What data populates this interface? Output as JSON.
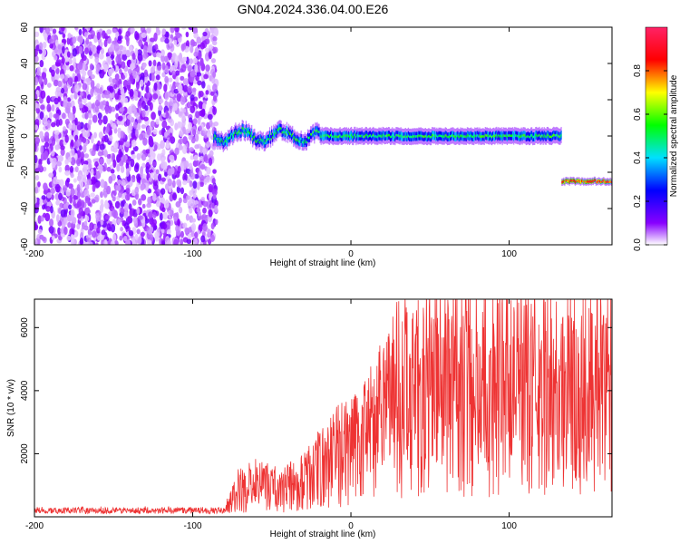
{
  "title": "GN04.2024.336.04.00.E26",
  "chart_data": [
    {
      "type": "heatmap",
      "xlabel": "Height of straight line (km)",
      "ylabel": "Frequency (Hz)",
      "xlim": [
        -200,
        165
      ],
      "ylim": [
        -60,
        60
      ],
      "xticks": [
        "-200",
        "-100",
        "0",
        "100"
      ],
      "yticks": [
        "60",
        "40",
        "20",
        "0",
        "-20",
        "-40",
        "-60"
      ],
      "colorbar": {
        "label": "Normalized spectral amplitude",
        "range": [
          0,
          1
        ],
        "ticks": [
          "0.0",
          "0.2",
          "0.4",
          "0.6",
          "0.8"
        ],
        "colors": [
          "#ffffff",
          "#8800ff",
          "#0000ff",
          "#00e0ff",
          "#00ff00",
          "#ffff00",
          "#ff0000",
          "#ff2266"
        ]
      },
      "features": [
        {
          "kind": "noise",
          "x_range": [
            -200,
            -85
          ],
          "freq_range": [
            -60,
            60
          ],
          "amplitude": 0.15
        },
        {
          "kind": "line",
          "x_range": [
            -87,
            133
          ],
          "freq": 0,
          "amplitude": 0.6
        },
        {
          "kind": "line",
          "x_range": [
            133,
            165
          ],
          "freq": -25,
          "amplitude": 0.95
        }
      ]
    },
    {
      "type": "line",
      "xlabel": "Height of straight line (km)",
      "ylabel": "SNR (10 * v/v)",
      "xlim": [
        -200,
        165
      ],
      "ylim": [
        0,
        6900
      ],
      "xticks": [
        "-200",
        "-100",
        "0",
        "100"
      ],
      "yticks": [
        "2000",
        "4000",
        "6000"
      ],
      "series_color": "#ee3333",
      "envelope": [
        {
          "x": -200,
          "y": 200
        },
        {
          "x": -80,
          "y": 200
        },
        {
          "x": -73,
          "y": 800
        },
        {
          "x": -60,
          "y": 1000
        },
        {
          "x": -45,
          "y": 900
        },
        {
          "x": -30,
          "y": 1100
        },
        {
          "x": -15,
          "y": 1700
        },
        {
          "x": 0,
          "y": 2200
        },
        {
          "x": 15,
          "y": 2700
        },
        {
          "x": 30,
          "y": 3800
        },
        {
          "x": 60,
          "y": 4100
        },
        {
          "x": 100,
          "y": 4100
        },
        {
          "x": 130,
          "y": 4000
        },
        {
          "x": 165,
          "y": 4000
        }
      ]
    }
  ]
}
